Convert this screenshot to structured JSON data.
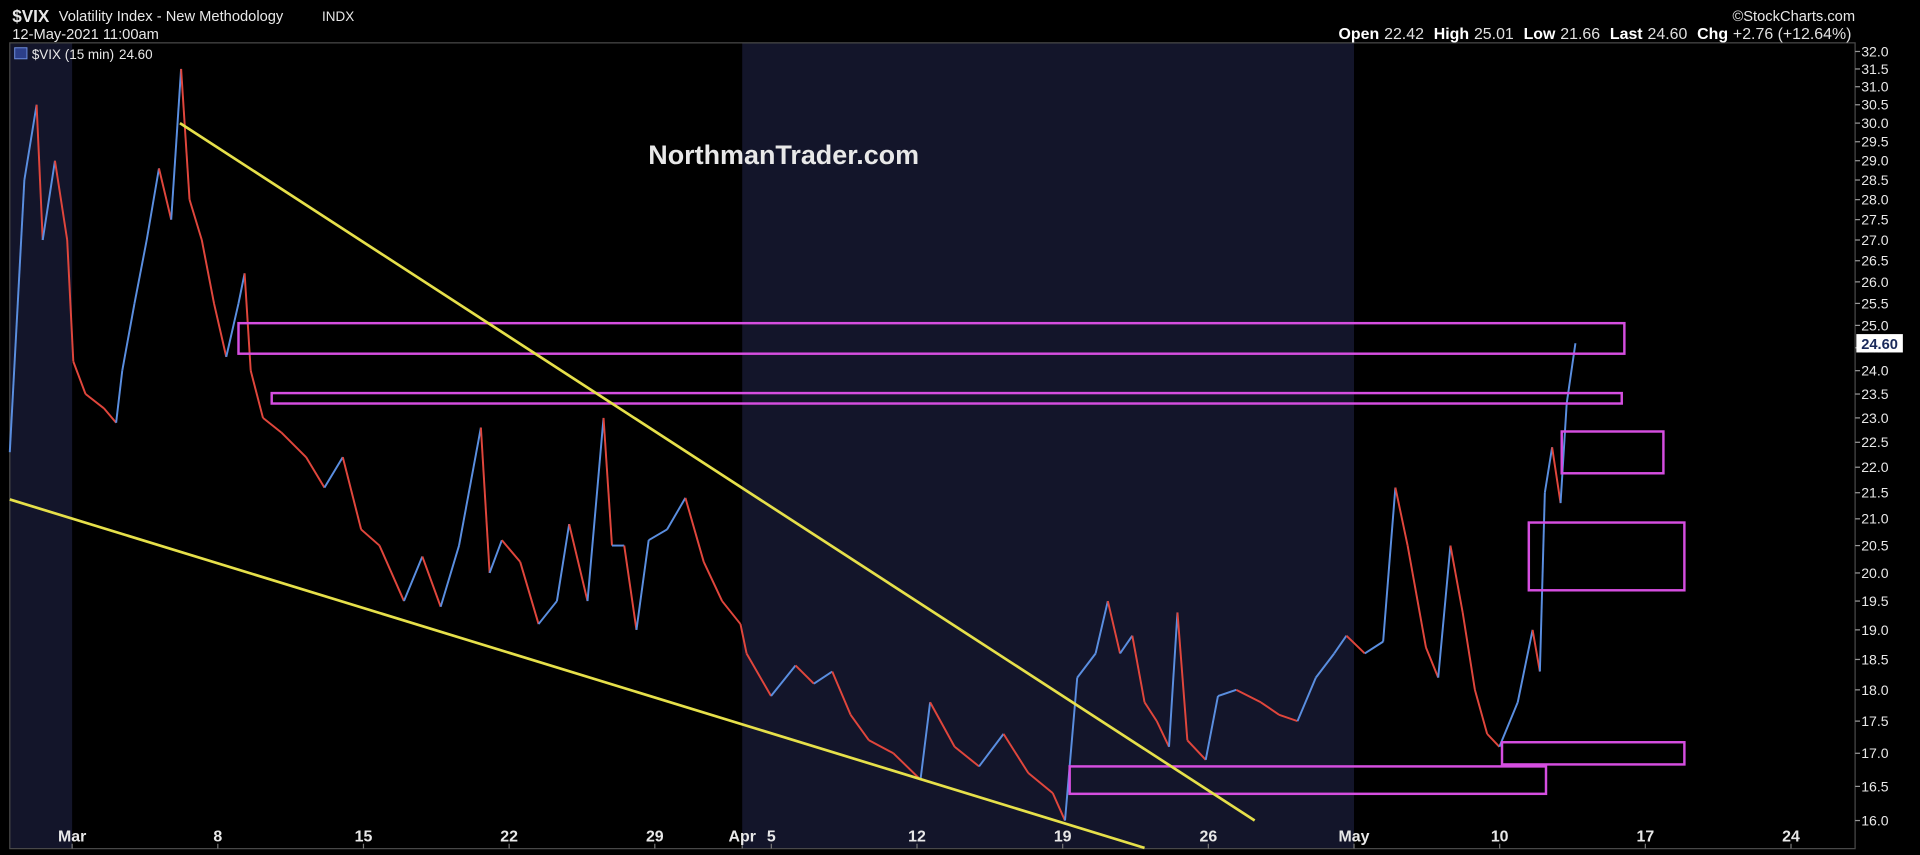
{
  "chart_data": {
    "type": "line",
    "title": "$VIX",
    "subtitle": "Volatility Index - New Methodology",
    "exchange": "INDX",
    "date": "12-May-2021 11:00am",
    "credit": "©StockCharts.com",
    "watermark": "NorthmanTrader.com",
    "quote": [
      {
        "label": "Open",
        "value": "22.42"
      },
      {
        "label": "High",
        "value": "25.01"
      },
      {
        "label": "Low",
        "value": "21.66"
      },
      {
        "label": "Last",
        "value": "24.60"
      },
      {
        "label": "Chg",
        "value": "+2.76 (+12.64%)"
      }
    ],
    "last_label": "24.60",
    "log_scale": true,
    "up_color": "#5a8ee0",
    "down_color": "#e0463c",
    "shade_color": "#13152a",
    "zone_color": "#d54ee0",
    "trendline_color": "#e6e04a",
    "xlim": [
      -2.14,
      61.2
    ],
    "ylim": [
      15.6,
      32.25
    ],
    "xticks": [
      {
        "value": 0,
        "label": "Mar"
      },
      {
        "value": 5,
        "label": "8"
      },
      {
        "value": 10,
        "label": "15"
      },
      {
        "value": 15,
        "label": "22"
      },
      {
        "value": 20,
        "label": "29"
      },
      {
        "value": 23,
        "label": "Apr"
      },
      {
        "value": 24,
        "label": "5"
      },
      {
        "value": 29,
        "label": "12"
      },
      {
        "value": 34,
        "label": "19"
      },
      {
        "value": 39,
        "label": "26"
      },
      {
        "value": 44,
        "label": "May"
      },
      {
        "value": 49,
        "label": "10"
      },
      {
        "value": 54,
        "label": "17"
      },
      {
        "value": 59,
        "label": "24"
      }
    ],
    "yticks": [
      {
        "value": 16,
        "label": "16.0"
      },
      16.5,
      {
        "value": 17,
        "label": "17.0"
      },
      17.5,
      {
        "value": 18,
        "label": "18.0"
      },
      18.5,
      {
        "value": 19,
        "label": "19.0"
      },
      19.5,
      {
        "value": 20,
        "label": "20.0"
      },
      20.5,
      {
        "value": 21,
        "label": "21.0"
      },
      21.5,
      {
        "value": 22,
        "label": "22.0"
      },
      22.5,
      {
        "value": 23,
        "label": "23.0"
      },
      23.5,
      {
        "value": 24,
        "label": "24.0"
      },
      24.5,
      {
        "value": 25,
        "label": "25.0"
      },
      25.5,
      {
        "value": 26,
        "label": "26.0"
      },
      26.5,
      {
        "value": 27,
        "label": "27.0"
      },
      27.5,
      {
        "value": 28,
        "label": "28.0"
      },
      28.5,
      {
        "value": 29,
        "label": "29.0"
      },
      29.5,
      {
        "value": 30,
        "label": "30.0"
      },
      30.5,
      {
        "value": 31,
        "label": "31.0"
      },
      31.5,
      {
        "value": 32,
        "label": "32.0"
      }
    ],
    "series": [
      {
        "name": "$VIX (15 min)",
        "x": [
          -2.14,
          -1.64,
          -1.22,
          -1.01,
          -0.59,
          -0.17,
          0.04,
          0.46,
          1.09,
          1.51,
          1.72,
          2.14,
          2.56,
          2.98,
          3.4,
          3.74,
          4.03,
          4.45,
          4.87,
          5.29,
          5.71,
          5.92,
          6.13,
          6.55,
          7.18,
          8.03,
          8.66,
          9.29,
          9.92,
          10.55,
          11.39,
          12.02,
          12.65,
          13.28,
          14.03,
          14.33,
          14.75,
          15.38,
          16.01,
          16.64,
          17.06,
          17.69,
          18.24,
          18.53,
          18.95,
          19.37,
          19.79,
          20.42,
          21.05,
          21.68,
          22.31,
          22.94,
          23.15,
          23.99,
          24.83,
          25.46,
          26.09,
          26.72,
          27.35,
          28.19,
          29.12,
          29.45,
          30.29,
          31.13,
          31.97,
          32.82,
          33.66,
          34.08,
          34.5,
          35.13,
          35.55,
          35.97,
          36.39,
          36.81,
          37.23,
          37.65,
          37.94,
          38.28,
          38.91,
          39.33,
          39.96,
          40.8,
          41.43,
          42.06,
          42.69,
          43.32,
          43.74,
          44.37,
          45.0,
          45.42,
          45.84,
          46.47,
          46.89,
          47.31,
          47.73,
          48.15,
          48.57,
          48.99,
          49.62,
          50.13,
          50.38,
          50.55,
          50.8,
          51.09,
          51.3,
          51.6
        ],
        "values": [
          22.3,
          28.5,
          30.5,
          27,
          29,
          27,
          24.2,
          23.5,
          23.2,
          22.9,
          24.0,
          25.5,
          27,
          28.8,
          27.5,
          31.5,
          28,
          27,
          25.5,
          24.3,
          25.5,
          26.2,
          24.0,
          23,
          22.7,
          22.2,
          21.6,
          22.2,
          20.8,
          20.5,
          19.5,
          20.3,
          19.4,
          20.5,
          22.8,
          20,
          20.6,
          20.2,
          19.1,
          19.5,
          20.9,
          19.5,
          23,
          20.5,
          20.5,
          19.0,
          20.6,
          20.8,
          21.4,
          20.2,
          19.5,
          19.1,
          18.6,
          17.9,
          18.4,
          18.1,
          18.3,
          17.6,
          17.2,
          17.0,
          16.6,
          17.8,
          17.1,
          16.8,
          17.3,
          16.7,
          16.4,
          16.0,
          18.2,
          18.6,
          19.5,
          18.6,
          18.9,
          17.8,
          17.5,
          17.1,
          19.3,
          17.2,
          16.9,
          17.9,
          18.0,
          17.8,
          17.6,
          17.5,
          18.2,
          18.6,
          18.9,
          18.6,
          18.8,
          21.6,
          20.5,
          18.7,
          18.2,
          20.5,
          19.3,
          18.0,
          17.3,
          17.1,
          17.8,
          19.0,
          18.3,
          21.5,
          22.4,
          21.3,
          23.3,
          24.6
        ]
      }
    ],
    "zones": [
      {
        "x": [
          5.71,
          53.28
        ],
        "y": [
          24.37,
          25.05
        ]
      },
      {
        "x": [
          6.85,
          53.19
        ],
        "y": [
          23.3,
          23.52
        ]
      },
      {
        "x": [
          51.13,
          54.62
        ],
        "y": [
          21.88,
          22.72
        ]
      },
      {
        "x": [
          50.0,
          55.34
        ],
        "y": [
          19.69,
          20.93
        ]
      },
      {
        "x": [
          49.08,
          55.34
        ],
        "y": [
          16.83,
          17.17
        ]
      },
      {
        "x": [
          34.24,
          50.59
        ],
        "y": [
          16.39,
          16.8
        ]
      }
    ],
    "trendlines": [
      {
        "x": [
          3.7,
          40.59
        ],
        "y": [
          30.0,
          16.0
        ]
      },
      {
        "x": [
          -2.14,
          36.81
        ],
        "y": [
          21.37,
          15.61
        ]
      }
    ]
  }
}
